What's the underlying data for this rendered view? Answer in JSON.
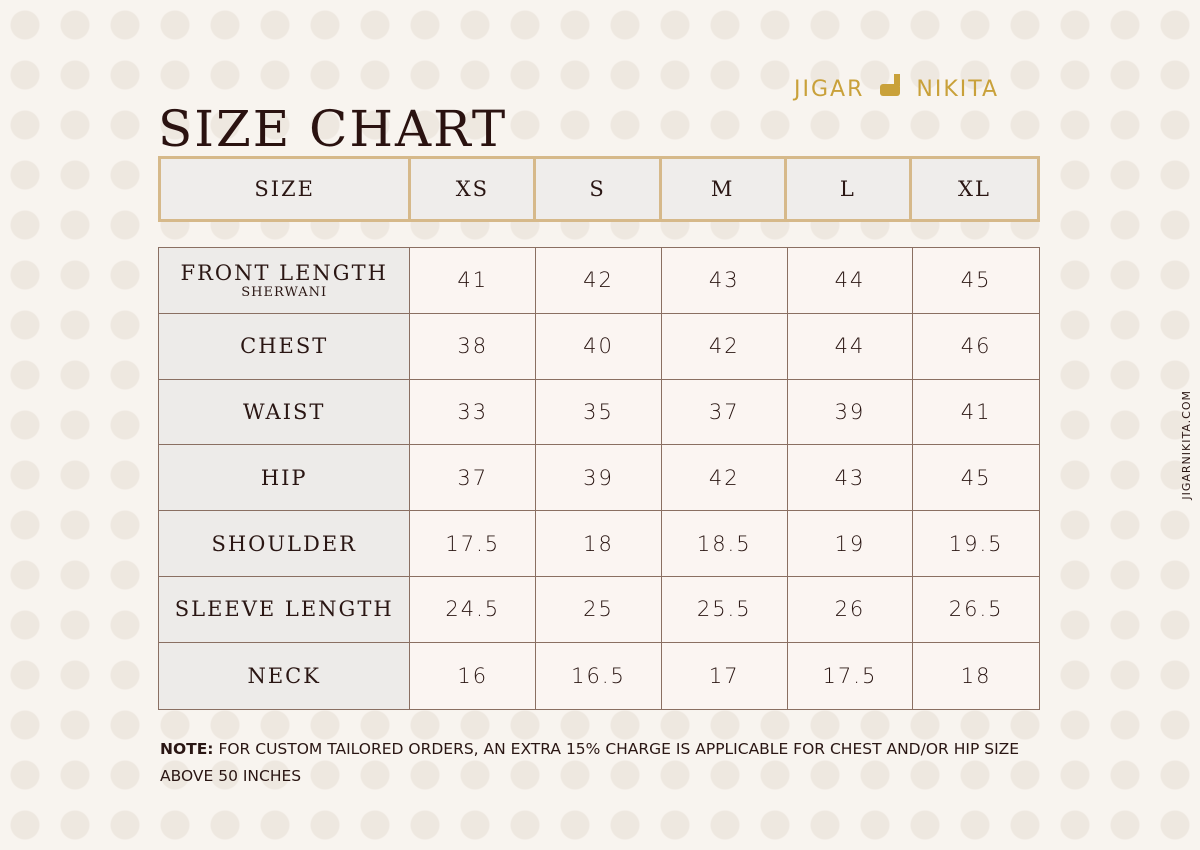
{
  "title": "SIZE CHART",
  "brand": {
    "left": "JIGAR",
    "right": "NIKITA",
    "accent": "#c9a13a",
    "icon": "deer-icon"
  },
  "website": "JIGARNIKITA.COM",
  "header": {
    "label": "SIZE",
    "sizes": [
      "XS",
      "S",
      "M",
      "L",
      "XL"
    ]
  },
  "rows": [
    {
      "label": "FRONT LENGTH",
      "sublabel": "SHERWANI",
      "values": [
        "41",
        "42",
        "43",
        "44",
        "45"
      ]
    },
    {
      "label": "CHEST",
      "values": [
        "38",
        "40",
        "42",
        "44",
        "46"
      ]
    },
    {
      "label": "WAIST",
      "values": [
        "33",
        "35",
        "37",
        "39",
        "41"
      ]
    },
    {
      "label": "HIP",
      "values": [
        "37",
        "39",
        "42",
        "43",
        "45"
      ]
    },
    {
      "label": "SHOULDER",
      "values": [
        "17.5",
        "18",
        "18.5",
        "19",
        "19.5"
      ]
    },
    {
      "label": "SLEEVE LENGTH",
      "values": [
        "24.5",
        "25",
        "25.5",
        "26",
        "26.5"
      ]
    },
    {
      "label": "NECK",
      "values": [
        "16",
        "16.5",
        "17",
        "17.5",
        "18"
      ]
    }
  ],
  "note": {
    "prefix": "NOTE:",
    "text": " FOR CUSTOM TAILORED ORDERS, AN EXTRA 15% CHARGE IS APPLICABLE FOR CHEST AND/OR HIP SIZE ABOVE 50 INCHES"
  }
}
